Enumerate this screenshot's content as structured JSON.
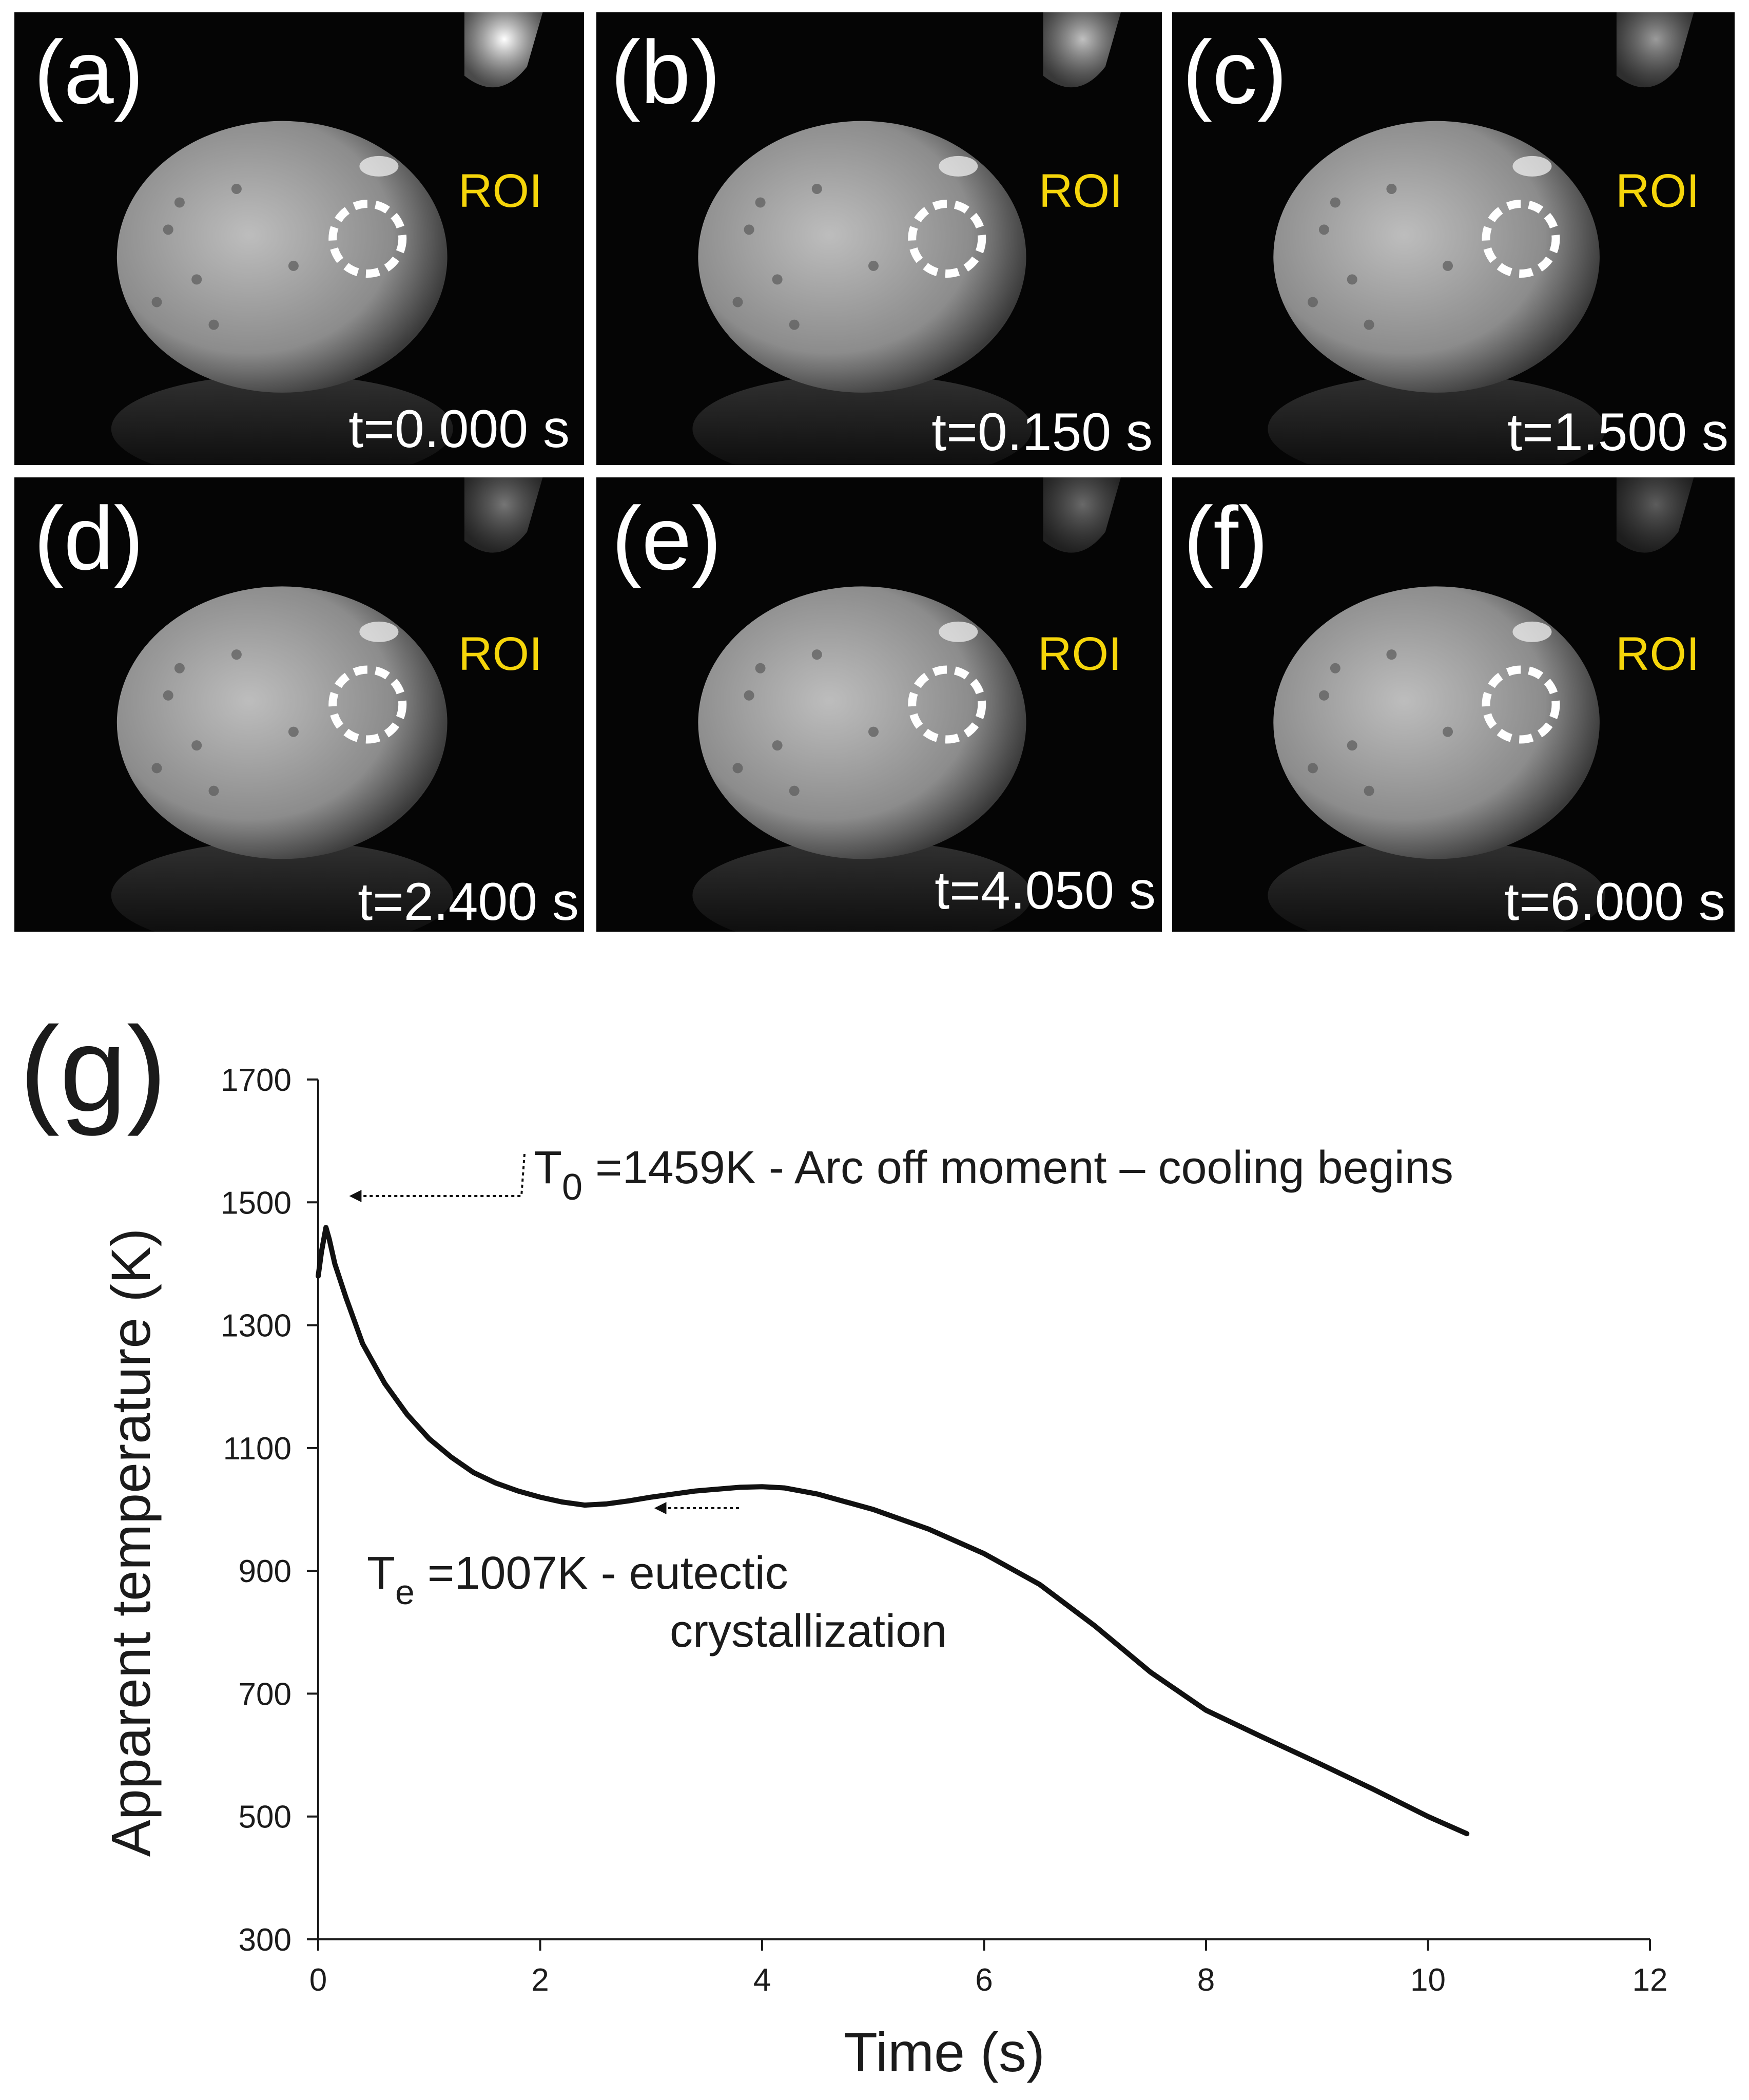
{
  "panels": [
    {
      "letter": "(a)",
      "roi": "ROI",
      "time": "t=0.000 s"
    },
    {
      "letter": "(b)",
      "roi": "ROI",
      "time": "t=0.150 s"
    },
    {
      "letter": "(c)",
      "roi": "ROI",
      "time": "t=1.500 s"
    },
    {
      "letter": "(d)",
      "roi": "ROI",
      "time": "t=2.400 s"
    },
    {
      "letter": "(e)",
      "roi": "ROI",
      "time": "t=4.050 s"
    },
    {
      "letter": "(f)",
      "roi": "ROI",
      "time": "t=6.000 s"
    }
  ],
  "colors": {
    "roi": "#f5d50a",
    "panel_bg": "#050505",
    "curve": "#111111"
  },
  "chart_label": "(g)",
  "chart_data": {
    "type": "line",
    "xlabel": "Time (s)",
    "ylabel": "Apparent temperature (K)",
    "xlim": [
      0,
      12
    ],
    "ylim": [
      300,
      1700
    ],
    "xticks": [
      0,
      2,
      4,
      6,
      8,
      10,
      12
    ],
    "yticks": [
      300,
      500,
      700,
      900,
      1100,
      1300,
      1500,
      1700
    ],
    "grid": false,
    "series": [
      {
        "x": [
          0,
          0.03,
          0.07,
          0.1,
          0.15,
          0.25,
          0.4,
          0.6,
          0.8,
          1.0,
          1.2,
          1.4,
          1.6,
          1.8,
          2.0,
          2.2,
          2.4,
          2.6,
          2.8,
          3.0,
          3.2,
          3.4,
          3.6,
          3.8,
          4.0,
          4.2,
          4.5,
          5.0,
          5.5,
          6.0,
          6.5,
          7.0,
          7.5,
          8.0,
          8.5,
          9.0,
          9.5,
          10.0,
          10.35
        ],
        "y": [
          1380,
          1420,
          1459,
          1440,
          1400,
          1345,
          1270,
          1205,
          1155,
          1115,
          1085,
          1060,
          1043,
          1030,
          1020,
          1012,
          1007,
          1009,
          1014,
          1020,
          1025,
          1030,
          1033,
          1036,
          1037,
          1035,
          1025,
          1000,
          968,
          928,
          878,
          810,
          735,
          673,
          630,
          588,
          545,
          500,
          472
        ]
      }
    ],
    "annotations": [
      {
        "main": "T",
        "sub": "0",
        "rest": " =1459K - Arc off moment – cooling begins",
        "point": [
          0.05,
          1459
        ]
      },
      {
        "main": "T",
        "sub": "e",
        "rest": " =1007K - eutectic",
        "line2": "crystallization",
        "point": [
          2.9,
          1007
        ]
      }
    ]
  }
}
